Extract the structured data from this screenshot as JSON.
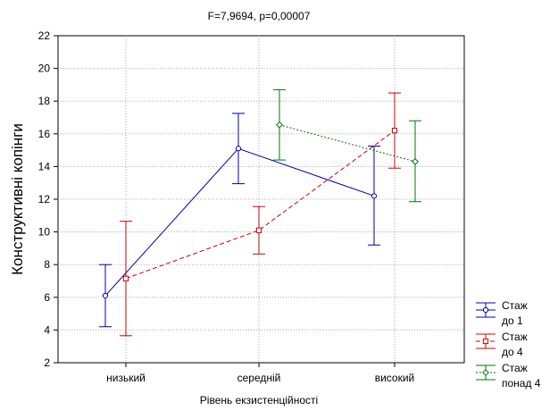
{
  "chart_data": {
    "type": "line",
    "title": "F=7,9694, p=0,00007",
    "xlabel": "Рівень екзистенційності",
    "ylabel": "Конструктивні копінги",
    "categories": [
      "низький",
      "середній",
      "високий"
    ],
    "ylim": [
      2,
      22
    ],
    "yticks": [
      2,
      4,
      6,
      8,
      10,
      12,
      14,
      16,
      18,
      20,
      22
    ],
    "grid": true,
    "legend_position": "bottom-right",
    "series": [
      {
        "name_lines": [
          "Стаж",
          "до 1"
        ],
        "color": "#0000aa",
        "dash": "solid",
        "marker": "circle",
        "values": [
          6.1,
          15.1,
          12.2
        ],
        "err_low": [
          4.2,
          12.95,
          9.2
        ],
        "err_high": [
          8.0,
          17.25,
          15.25
        ]
      },
      {
        "name_lines": [
          "Стаж",
          "до 4"
        ],
        "color": "#cc0000",
        "dash": "dashed",
        "marker": "square",
        "values": [
          7.15,
          10.1,
          16.2
        ],
        "err_low": [
          3.65,
          8.65,
          13.9
        ],
        "err_high": [
          10.65,
          11.55,
          18.5
        ]
      },
      {
        "name_lines": [
          "Стаж",
          "понад 4"
        ],
        "color": "#007700",
        "dash": "dotted",
        "marker": "diamond",
        "values": [
          null,
          16.55,
          14.3
        ],
        "err_low": [
          null,
          14.4,
          11.85
        ],
        "err_high": [
          null,
          18.7,
          16.8
        ]
      }
    ]
  }
}
